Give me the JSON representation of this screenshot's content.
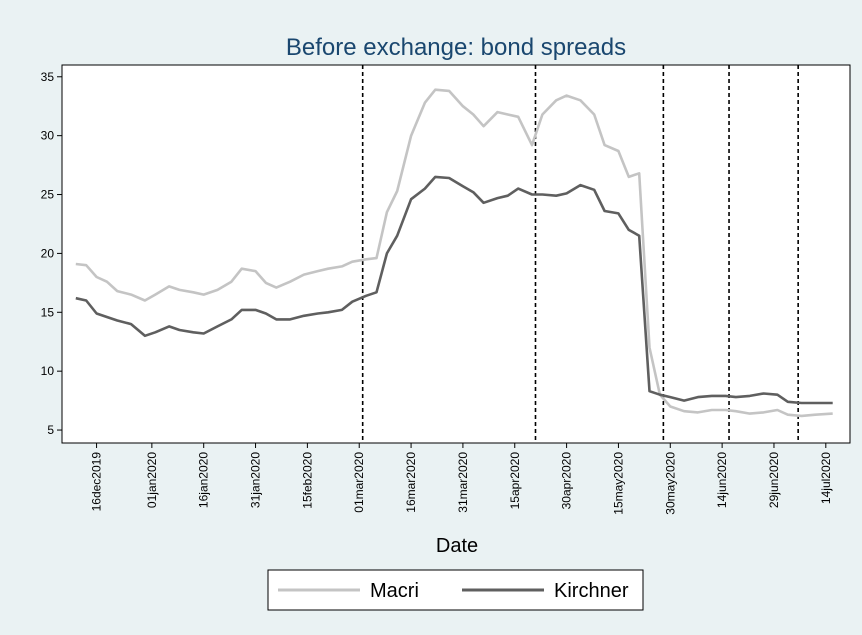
{
  "chart_data": {
    "type": "line",
    "title": "Before exchange: bond spreads",
    "x_label": "Date",
    "x": [
      "2019-12-10",
      "2019-12-13",
      "2019-12-16",
      "2019-12-19",
      "2019-12-22",
      "2019-12-26",
      "2019-12-30",
      "2020-01-02",
      "2020-01-06",
      "2020-01-09",
      "2020-01-13",
      "2020-01-16",
      "2020-01-20",
      "2020-01-24",
      "2020-01-27",
      "2020-01-31",
      "2020-02-03",
      "2020-02-06",
      "2020-02-10",
      "2020-02-14",
      "2020-02-18",
      "2020-02-21",
      "2020-02-25",
      "2020-02-28",
      "2020-03-03",
      "2020-03-06",
      "2020-03-09",
      "2020-03-12",
      "2020-03-16",
      "2020-03-20",
      "2020-03-23",
      "2020-03-27",
      "2020-03-31",
      "2020-04-03",
      "2020-04-06",
      "2020-04-10",
      "2020-04-13",
      "2020-04-16",
      "2020-04-20",
      "2020-04-23",
      "2020-04-27",
      "2020-04-30",
      "2020-05-04",
      "2020-05-08",
      "2020-05-11",
      "2020-05-15",
      "2020-05-18",
      "2020-05-21",
      "2020-05-24",
      "2020-05-27",
      "2020-05-30",
      "2020-06-03",
      "2020-06-07",
      "2020-06-11",
      "2020-06-15",
      "2020-06-18",
      "2020-06-22",
      "2020-06-26",
      "2020-06-30",
      "2020-07-03",
      "2020-07-07",
      "2020-07-11",
      "2020-07-16"
    ],
    "series": [
      {
        "name": "Macri",
        "color": "#c4c4c4",
        "values": [
          19.1,
          19.0,
          18.0,
          17.6,
          16.8,
          16.5,
          16.0,
          16.5,
          17.2,
          16.9,
          16.7,
          16.5,
          16.9,
          17.6,
          18.7,
          18.5,
          17.5,
          17.1,
          17.6,
          18.2,
          18.5,
          18.7,
          18.9,
          19.3,
          19.5,
          19.6,
          23.5,
          25.3,
          30.0,
          32.8,
          33.9,
          33.8,
          32.5,
          31.8,
          30.8,
          32.0,
          31.8,
          31.6,
          29.2,
          31.8,
          33.0,
          33.4,
          33.0,
          31.8,
          29.2,
          28.7,
          26.5,
          26.8,
          12.0,
          8.0,
          7.0,
          6.6,
          6.5,
          6.7,
          6.7,
          6.6,
          6.4,
          6.5,
          6.7,
          6.3,
          6.2,
          6.3,
          6.4
        ]
      },
      {
        "name": "Kirchner",
        "color": "#5f5f5f",
        "values": [
          16.2,
          16.0,
          14.9,
          14.6,
          14.3,
          14.0,
          13.0,
          13.3,
          13.8,
          13.5,
          13.3,
          13.2,
          13.8,
          14.4,
          15.2,
          15.2,
          14.9,
          14.4,
          14.4,
          14.7,
          14.9,
          15.0,
          15.2,
          15.9,
          16.4,
          16.7,
          20.0,
          21.5,
          24.6,
          25.5,
          26.5,
          26.4,
          25.7,
          25.2,
          24.3,
          24.7,
          24.9,
          25.5,
          25.0,
          25.0,
          24.9,
          25.1,
          25.8,
          25.4,
          23.6,
          23.4,
          22.0,
          21.5,
          8.3,
          8.0,
          7.8,
          7.5,
          7.8,
          7.9,
          7.9,
          7.8,
          7.9,
          8.1,
          8.0,
          7.4,
          7.3,
          7.3,
          7.3
        ]
      }
    ],
    "xlim": [
      "2019-12-06",
      "2020-07-21"
    ],
    "xticks": [
      {
        "value": "2019-12-16",
        "label": "16dec2019"
      },
      {
        "value": "2020-01-01",
        "label": "01jan2020"
      },
      {
        "value": "2020-01-16",
        "label": "16jan2020"
      },
      {
        "value": "2020-01-31",
        "label": "31jan2020"
      },
      {
        "value": "2020-02-15",
        "label": "15feb2020"
      },
      {
        "value": "2020-03-01",
        "label": "01mar2020"
      },
      {
        "value": "2020-03-16",
        "label": "16mar2020"
      },
      {
        "value": "2020-03-31",
        "label": "31mar2020"
      },
      {
        "value": "2020-04-15",
        "label": "15apr2020"
      },
      {
        "value": "2020-04-30",
        "label": "30apr2020"
      },
      {
        "value": "2020-05-15",
        "label": "15may2020"
      },
      {
        "value": "2020-05-30",
        "label": "30may2020"
      },
      {
        "value": "2020-06-14",
        "label": "14jun2020"
      },
      {
        "value": "2020-06-29",
        "label": "29jun2020"
      },
      {
        "value": "2020-07-14",
        "label": "14jul2020"
      }
    ],
    "ylim": [
      3.9,
      36
    ],
    "yticks": [
      5,
      10,
      15,
      20,
      25,
      30,
      35
    ],
    "vlines": [
      "2020-03-02",
      "2020-04-21",
      "2020-05-28",
      "2020-06-16",
      "2020-07-06"
    ],
    "grid": false,
    "legend": "bottom"
  }
}
